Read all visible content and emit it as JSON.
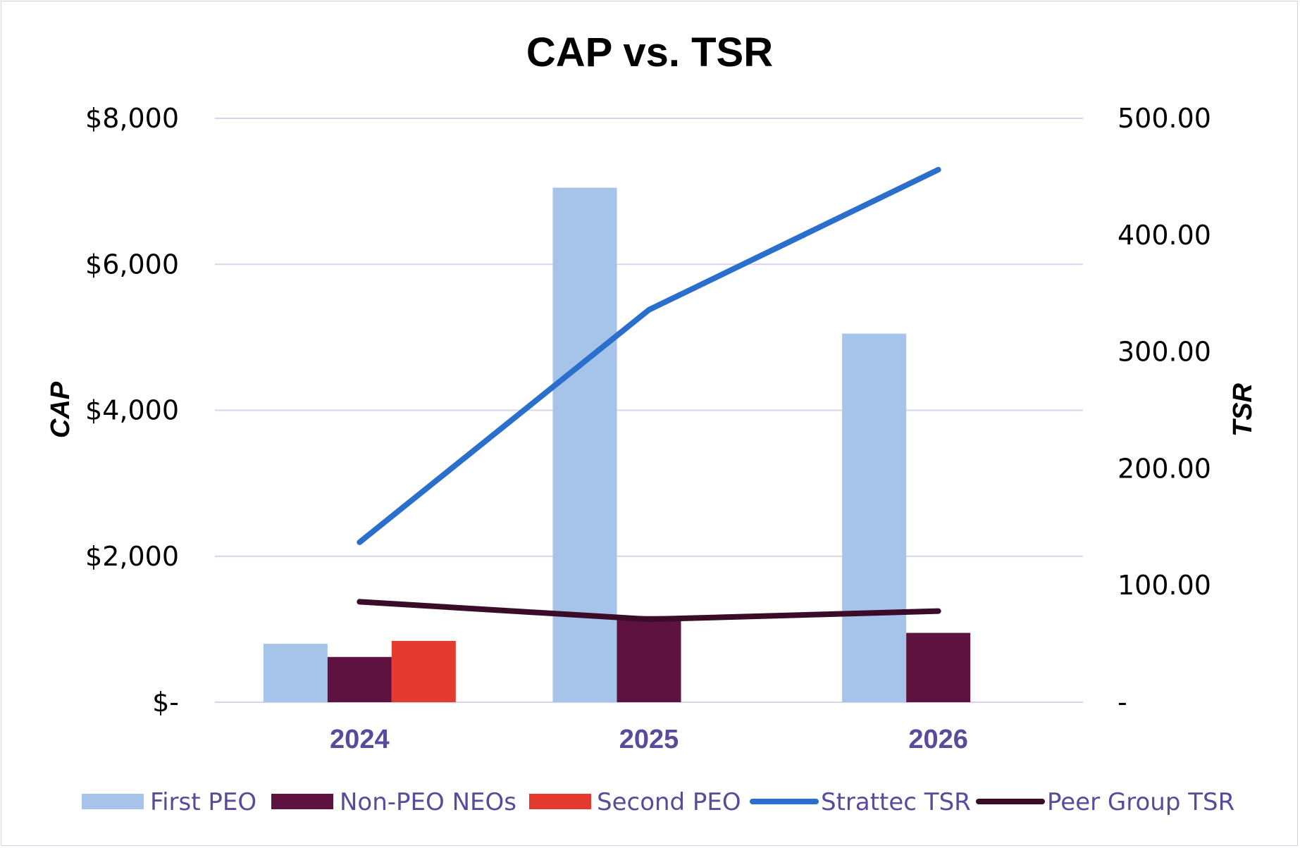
{
  "colors": {
    "first_peo": "#a6c3ea",
    "non_peo": "#5e1240",
    "second_peo": "#e53a30",
    "strattec_tsr": "#2a6fcc",
    "peer_tsr": "#3a0c28",
    "grid": "#d4d4ea",
    "axis_text_purple": "#5a4a9a"
  },
  "chart_data": {
    "type": "bar",
    "title": "CAP vs. TSR",
    "categories": [
      "2024",
      "2025",
      "2026"
    ],
    "series": [
      {
        "name": "First PEO",
        "type": "bar",
        "axis": "left",
        "color_key": "first_peo",
        "values": [
          800,
          7050,
          5050
        ]
      },
      {
        "name": "Non-PEO NEOs",
        "type": "bar",
        "axis": "left",
        "color_key": "non_peo",
        "values": [
          620,
          1180,
          950
        ]
      },
      {
        "name": "Second PEO",
        "type": "bar",
        "axis": "left",
        "color_key": "second_peo",
        "values": [
          840,
          null,
          null
        ]
      },
      {
        "name": "Strattec TSR",
        "type": "line",
        "axis": "right",
        "color_key": "strattec_tsr",
        "values": [
          137,
          336,
          456
        ]
      },
      {
        "name": "Peer Group TSR",
        "type": "line",
        "axis": "right",
        "color_key": "peer_tsr",
        "values": [
          86,
          71,
          78
        ]
      }
    ],
    "ylabel": "CAP",
    "y2label": "TSR",
    "ylim": [
      0,
      8000
    ],
    "y2lim": [
      0,
      500
    ],
    "yticks": [
      {
        "value": 0,
        "label": "$-"
      },
      {
        "value": 2000,
        "label": "$2,000"
      },
      {
        "value": 4000,
        "label": "$4,000"
      },
      {
        "value": 6000,
        "label": "$6,000"
      },
      {
        "value": 8000,
        "label": "$8,000"
      }
    ],
    "y2ticks": [
      {
        "value": 0,
        "label": "-"
      },
      {
        "value": 100,
        "label": "100.00"
      },
      {
        "value": 200,
        "label": "200.00"
      },
      {
        "value": 300,
        "label": "300.00"
      },
      {
        "value": 400,
        "label": "400.00"
      },
      {
        "value": 500,
        "label": "500.00"
      }
    ],
    "grid": true,
    "legend_position": "bottom"
  }
}
